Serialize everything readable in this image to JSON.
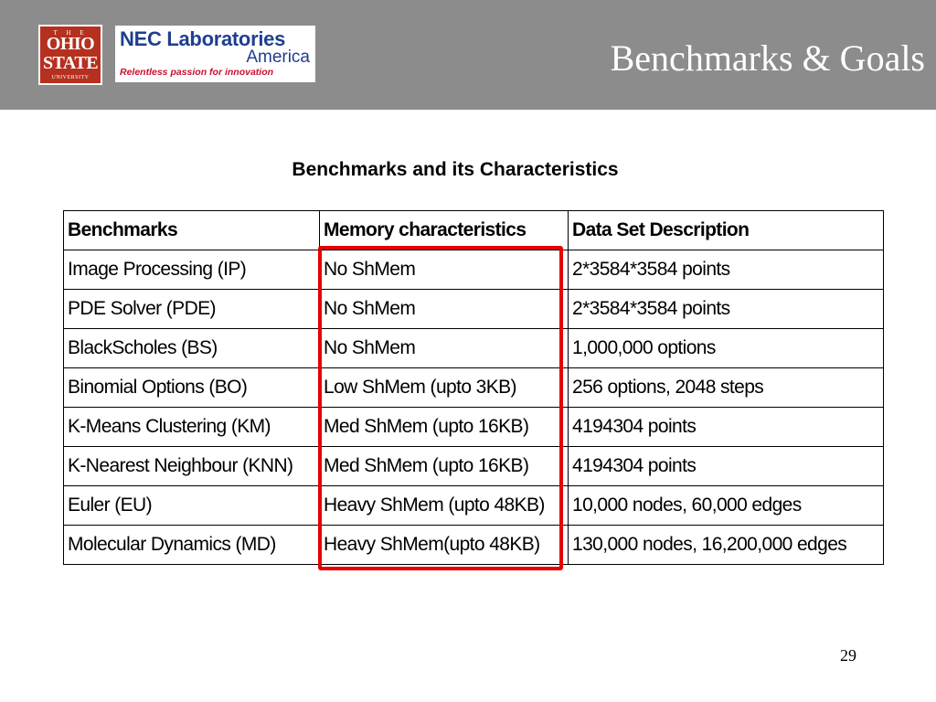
{
  "header": {
    "title": "Benchmarks & Goals",
    "osu_logo": {
      "line_the": "T H E",
      "line1": "OHIO",
      "line2": "STATE",
      "line3": "UNIVERSITY"
    },
    "nec_logo": {
      "line1": "NEC Laboratories",
      "line2": "America",
      "tagline": "Relentless passion for innovation"
    },
    "colors": {
      "header_bg": "#8c8c8c",
      "osu_red": "#b5301f",
      "nec_blue": "#1e3f8f",
      "highlight": "#e60000"
    }
  },
  "table": {
    "caption": "Benchmarks and its Characteristics",
    "headers": [
      "Benchmarks",
      "Memory characteristics",
      "Data Set Description"
    ],
    "rows": [
      [
        "Image Processing (IP)",
        "No ShMem",
        "2*3584*3584 points"
      ],
      [
        "PDE Solver (PDE)",
        "No ShMem",
        "2*3584*3584 points"
      ],
      [
        "BlackScholes (BS)",
        "No ShMem",
        "1,000,000 options"
      ],
      [
        "Binomial Options (BO)",
        "Low ShMem (upto 3KB)",
        "256 options, 2048 steps"
      ],
      [
        "K-Means Clustering (KM)",
        "Med ShMem (upto 16KB)",
        "4194304 points"
      ],
      [
        "K-Nearest Neighbour (KNN)",
        "Med ShMem (upto 16KB)",
        "4194304 points"
      ],
      [
        "Euler (EU)",
        "Heavy ShMem (upto 48KB)",
        "10,000 nodes,  60,000 edges"
      ],
      [
        "Molecular Dynamics (MD)",
        "Heavy ShMem(upto 48KB)",
        "130,000 nodes, 16,200,000 edges"
      ]
    ]
  },
  "footer": {
    "page_number": "29"
  }
}
